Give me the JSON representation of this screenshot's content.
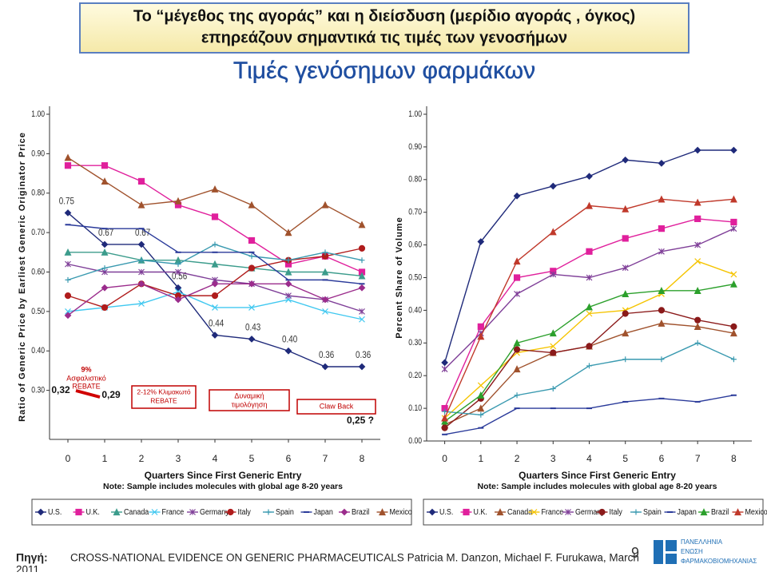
{
  "header": {
    "title_lines": [
      "Το “μέγεθος της αγοράς” και η διείσδυση (μερίδιο αγοράς , όγκος)",
      "επηρεάζουν σημαντικά τις τιμές των γενοσήμων"
    ],
    "heading": "Τιμές γενόσημων φαρμάκων"
  },
  "chart_data": [
    {
      "type": "line",
      "y_label": "Ratio of Generic Price by Earliest Generic Originator Price",
      "x_label": "Quarters Since First Generic Entry",
      "note": "Note: Sample includes molecules with global age 8-20 years",
      "x": [
        0,
        1,
        2,
        3,
        4,
        5,
        6,
        7,
        8
      ],
      "xlim": [
        -0.5,
        8.5
      ],
      "xticks": [
        0,
        1,
        2,
        3,
        4,
        5,
        6,
        7,
        8
      ],
      "ylim": [
        0.2,
        1.0
      ],
      "yticks": [
        {
          "value": 0.3,
          "label": "0.30"
        },
        {
          "value": 0.4,
          "label": "0.40"
        },
        {
          "value": 0.5,
          "label": "0.50"
        },
        {
          "value": 0.6,
          "label": "0.60"
        },
        {
          "value": 0.7,
          "label": "0.70"
        },
        {
          "value": 0.8,
          "label": "0.80"
        },
        {
          "value": 0.9,
          "label": "0.90"
        },
        {
          "value": 1.0,
          "label": "1.00"
        }
      ],
      "series": [
        {
          "name": "U.S.",
          "color": "#1f2a7a",
          "marker": "diamond",
          "values": [
            0.75,
            0.67,
            0.67,
            0.56,
            0.44,
            0.43,
            0.4,
            0.36,
            0.36
          ],
          "value_labels": [
            "0.75",
            "0.67",
            "0.67",
            "0.56",
            "0.44",
            "0.43",
            "0.40",
            "0.36",
            "0.36"
          ]
        },
        {
          "name": "U.K.",
          "color": "#e0209c",
          "marker": "square",
          "values": [
            0.87,
            0.87,
            0.83,
            0.77,
            0.74,
            0.68,
            0.62,
            0.64,
            0.6
          ]
        },
        {
          "name": "Canada",
          "color": "#3c9c8c",
          "marker": "triangle",
          "values": [
            0.65,
            0.65,
            0.63,
            0.63,
            0.62,
            0.61,
            0.6,
            0.6,
            0.59
          ]
        },
        {
          "name": "France",
          "color": "#40c8f0",
          "marker": "x",
          "values": [
            0.5,
            0.51,
            0.52,
            0.55,
            0.51,
            0.51,
            0.53,
            0.5,
            0.48
          ]
        },
        {
          "name": "Germany",
          "color": "#7f3f98",
          "marker": "star",
          "values": [
            0.62,
            0.6,
            0.6,
            0.6,
            0.58,
            0.57,
            0.54,
            0.53,
            0.5
          ]
        },
        {
          "name": "Italy",
          "color": "#b01c1c",
          "marker": "circle",
          "values": [
            0.54,
            0.51,
            0.57,
            0.54,
            0.54,
            0.61,
            0.63,
            0.64,
            0.66
          ]
        },
        {
          "name": "Spain",
          "color": "#3a9ab0",
          "marker": "plus",
          "values": [
            0.58,
            0.61,
            0.63,
            0.62,
            0.67,
            0.64,
            0.63,
            0.65,
            0.63
          ]
        },
        {
          "name": "Japan",
          "color": "#2a3a9a",
          "marker": "dash",
          "values": [
            0.72,
            0.71,
            0.71,
            0.65,
            0.65,
            0.65,
            0.58,
            0.58,
            0.57
          ]
        },
        {
          "name": "Brazil",
          "color": "#9b2c8c",
          "marker": "diamond",
          "values": [
            0.49,
            0.56,
            0.57,
            0.53,
            0.57,
            0.57,
            0.57,
            0.53,
            0.56
          ]
        },
        {
          "name": "Mexico",
          "color": "#a0522d",
          "marker": "triangle",
          "values": [
            0.89,
            0.83,
            0.77,
            0.78,
            0.81,
            0.77,
            0.7,
            0.77,
            0.72
          ]
        }
      ],
      "annotations": [
        "9%",
        "Ασφαλιστικό",
        "REBATE",
        "0,32",
        "0,29",
        "2-12% Κλιμακωτό",
        "REBATE",
        "Δυναμική",
        "τιμολόγηση",
        "Claw Back",
        "0,25 ?"
      ]
    },
    {
      "type": "line",
      "y_label": "Percent Share of Volume",
      "x_label": "Quarters Since First Generic Entry",
      "note": "Note: Sample includes molecules with global age 8-20 years",
      "x": [
        0,
        1,
        2,
        3,
        4,
        5,
        6,
        7,
        8
      ],
      "xlim": [
        -0.5,
        8.5
      ],
      "xticks": [
        0,
        1,
        2,
        3,
        4,
        5,
        6,
        7,
        8
      ],
      "ylim": [
        0,
        1.0
      ],
      "yticks": [
        {
          "value": 0,
          "label": "0.00"
        },
        {
          "value": 0.1,
          "label": "0.10"
        },
        {
          "value": 0.2,
          "label": "0.20"
        },
        {
          "value": 0.3,
          "label": "0.30"
        },
        {
          "value": 0.4,
          "label": "0.40"
        },
        {
          "value": 0.5,
          "label": "0.50"
        },
        {
          "value": 0.6,
          "label": "0.60"
        },
        {
          "value": 0.7,
          "label": "0.70"
        },
        {
          "value": 0.8,
          "label": "0.80"
        },
        {
          "value": 0.9,
          "label": "0.90"
        },
        {
          "value": 1.0,
          "label": "1.00"
        }
      ],
      "series": [
        {
          "name": "U.S.",
          "color": "#1f2a7a",
          "marker": "diamond",
          "values": [
            0.24,
            0.61,
            0.75,
            0.78,
            0.81,
            0.86,
            0.85,
            0.89,
            0.89
          ]
        },
        {
          "name": "U.K.",
          "color": "#e0209c",
          "marker": "square",
          "values": [
            0.1,
            0.35,
            0.5,
            0.52,
            0.58,
            0.62,
            0.65,
            0.68,
            0.67
          ]
        },
        {
          "name": "Canada",
          "color": "#a0522d",
          "marker": "triangle",
          "values": [
            0.05,
            0.1,
            0.22,
            0.27,
            0.29,
            0.33,
            0.36,
            0.35,
            0.33
          ]
        },
        {
          "name": "France",
          "color": "#f5c400",
          "marker": "x",
          "values": [
            0.07,
            0.17,
            0.27,
            0.29,
            0.39,
            0.4,
            0.45,
            0.55,
            0.51
          ]
        },
        {
          "name": "Germany",
          "color": "#7f3f98",
          "marker": "star",
          "values": [
            0.22,
            0.33,
            0.45,
            0.51,
            0.5,
            0.53,
            0.58,
            0.6,
            0.65
          ]
        },
        {
          "name": "Italy",
          "color": "#8b1a1a",
          "marker": "circle",
          "values": [
            0.04,
            0.13,
            0.28,
            0.27,
            0.29,
            0.39,
            0.4,
            0.37,
            0.35
          ]
        },
        {
          "name": "Spain",
          "color": "#3a9ab0",
          "marker": "plus",
          "values": [
            0.09,
            0.08,
            0.14,
            0.16,
            0.23,
            0.25,
            0.25,
            0.3,
            0.25
          ]
        },
        {
          "name": "Japan",
          "color": "#2a3a9a",
          "marker": "dash",
          "values": [
            0.02,
            0.04,
            0.1,
            0.1,
            0.1,
            0.12,
            0.13,
            0.12,
            0.14
          ]
        },
        {
          "name": "Brazil",
          "color": "#2ca02c",
          "marker": "triangle",
          "values": [
            0.06,
            0.14,
            0.3,
            0.33,
            0.41,
            0.45,
            0.46,
            0.46,
            0.48
          ]
        },
        {
          "name": "Mexico",
          "color": "#c0392b",
          "marker": "triangle",
          "values": [
            0.07,
            0.32,
            0.55,
            0.64,
            0.72,
            0.71,
            0.74,
            0.73,
            0.74
          ]
        }
      ]
    }
  ],
  "footer": {
    "source_label": "Πηγή:",
    "citation": "CROSS-NATIONAL EVIDENCE ON GENERIC PHARMACEUTICALS Patricia M. Danzon, Michael F. Furukawa, March",
    "citation_year": "2011",
    "page_number": "9",
    "logo_lines": [
      "ΠΑΝΕΛΛΗΝΙΑ",
      "ΕΝΩΣΗ",
      "ΦΑΡΜΑΚΟΒΙΟΜΗΧΑΝΙΑΣ"
    ]
  }
}
